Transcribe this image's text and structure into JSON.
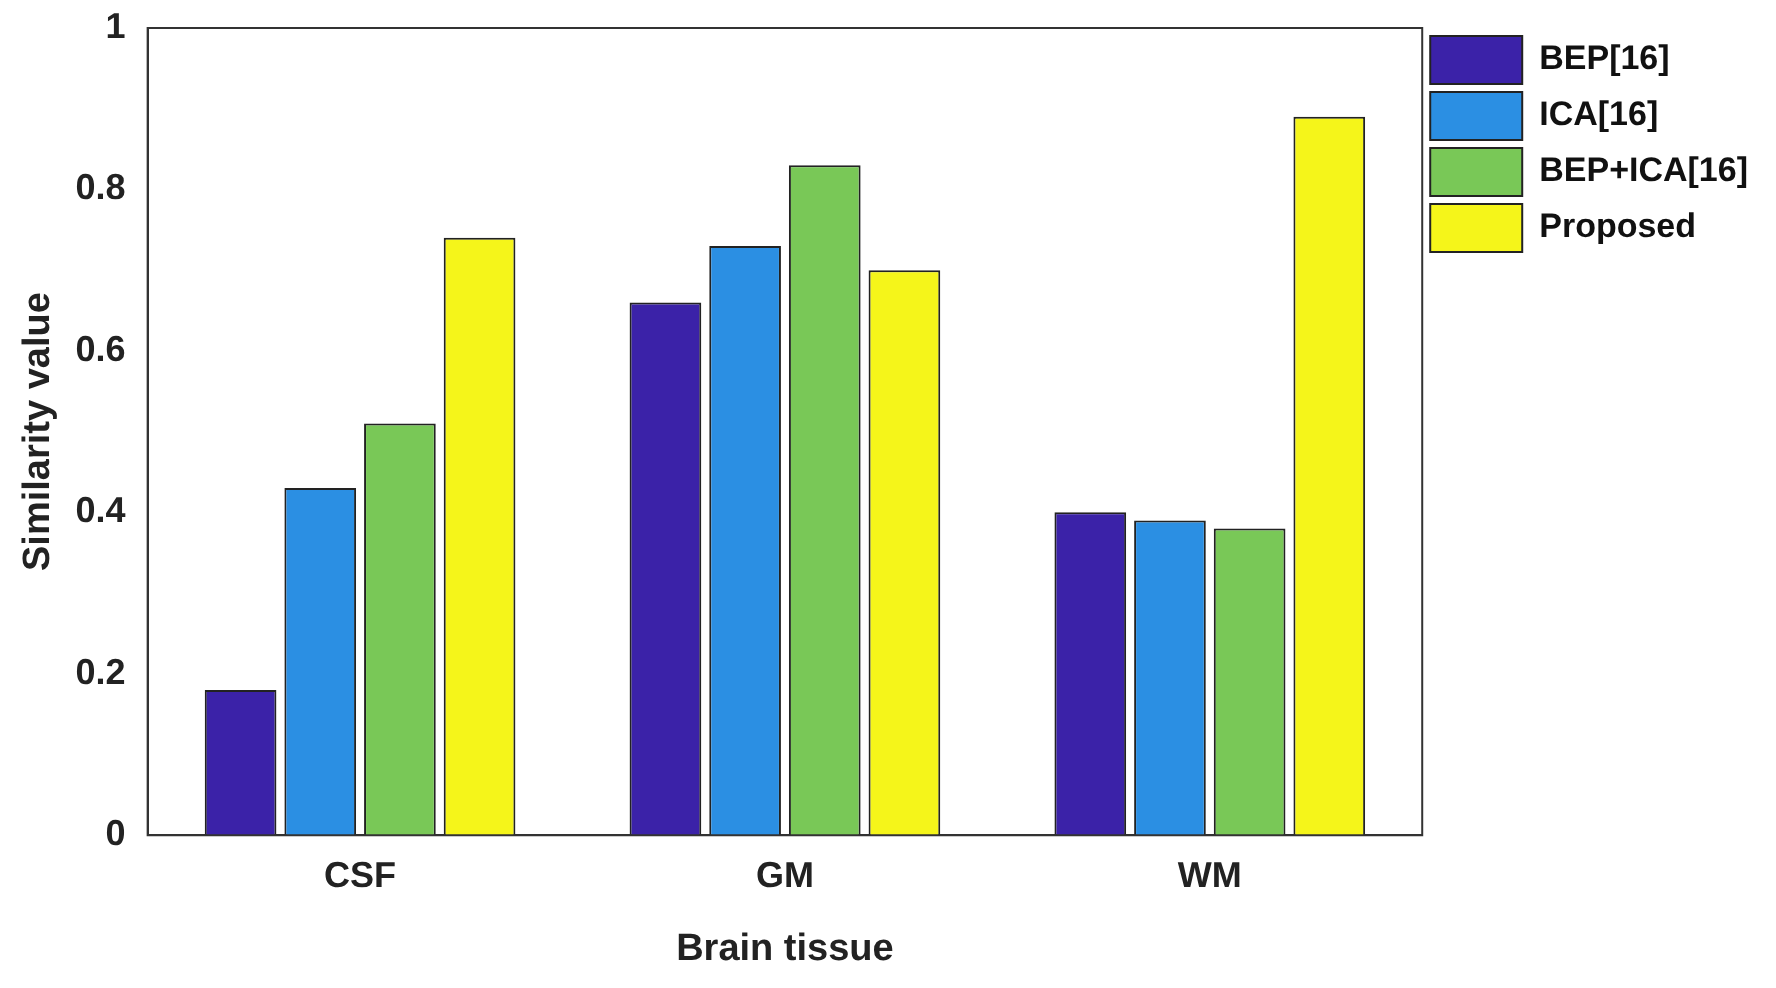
{
  "chart_data": {
    "type": "bar",
    "xlabel": "Brain tissue",
    "ylabel": "Similarity value",
    "categories": [
      "CSF",
      "GM",
      "WM"
    ],
    "series": [
      {
        "name": "BEP[16]",
        "color": "#3b22a8",
        "values": [
          0.18,
          0.66,
          0.4
        ]
      },
      {
        "name": "ICA[16]",
        "color": "#2b8fe3",
        "values": [
          0.43,
          0.73,
          0.39
        ]
      },
      {
        "name": "BEP+ICA[16]",
        "color": "#79c857",
        "values": [
          0.51,
          0.83,
          0.38
        ]
      },
      {
        "name": "Proposed",
        "color": "#f5f51a",
        "values": [
          0.74,
          0.7,
          0.89
        ]
      }
    ],
    "ylim": [
      0,
      1
    ],
    "yticks": [
      0,
      0.2,
      0.4,
      0.6,
      0.8,
      1
    ],
    "grid": false,
    "legend": "top right"
  }
}
